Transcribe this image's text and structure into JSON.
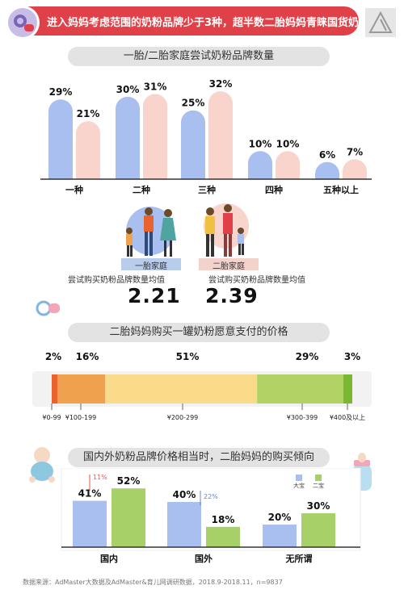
{
  "header": {
    "title": "进入妈妈考虑范围的奶粉品牌少于3种，超半数二胎妈妈青睐国货奶粉",
    "colors": {
      "bar": "#e04047",
      "icon": "#c8bde6"
    }
  },
  "chart_data": [
    {
      "type": "bar",
      "title": "一胎/二胎家庭尝试奶粉品牌数量",
      "categories": [
        "一种",
        "二种",
        "三种",
        "四种",
        "五种以上"
      ],
      "series": [
        {
          "name": "一胎家庭",
          "values": [
            29,
            30,
            25,
            10,
            6
          ],
          "labels": [
            "29%",
            "30%",
            "25%",
            "10%",
            "6%"
          ],
          "color": "#a9bff0"
        },
        {
          "name": "二胎家庭",
          "values": [
            21,
            31,
            32,
            10,
            7
          ],
          "labels": [
            "21%",
            "31%",
            "32%",
            "10%",
            "7%"
          ],
          "color": "#f8d4cc"
        }
      ],
      "ylim": [
        0,
        35
      ]
    },
    {
      "type": "bar",
      "title": "二胎妈妈购买一罐奶粉愿意支付的价格",
      "stacked": true,
      "categories": [
        "¥0-99",
        "¥100-199",
        "¥200-299",
        "¥300-399",
        "¥400及以上"
      ],
      "values": [
        2,
        16,
        51,
        29,
        3
      ],
      "labels": [
        "2%",
        "16%",
        "51%",
        "29%",
        "3%"
      ],
      "colors": [
        "#e8632e",
        "#f0a14d",
        "#fadb8a",
        "#b2d263",
        "#79b830"
      ]
    },
    {
      "type": "bar",
      "title": "国内外奶粉品牌价格相当时，二胎妈妈的购买倾向",
      "categories": [
        "国内",
        "国外",
        "无所谓"
      ],
      "series": [
        {
          "name": "大宝",
          "values": [
            41,
            40,
            20
          ],
          "labels": [
            "41%",
            "40%",
            "20%"
          ],
          "color": "#a9bff0"
        },
        {
          "name": "二宝",
          "values": [
            52,
            18,
            30
          ],
          "labels": [
            "52%",
            "18%",
            "30%"
          ],
          "color": "#a8d068"
        }
      ],
      "annotations": [
        {
          "category": "国内",
          "text": "11%",
          "direction": "up",
          "color": "#e05a4a"
        },
        {
          "category": "国外",
          "text": "22%",
          "direction": "down",
          "color": "#6a86c8"
        }
      ],
      "ylim": [
        0,
        60
      ]
    }
  ],
  "families": {
    "first": {
      "label": "一胎家庭",
      "caption": "尝试购买奶粉品牌数量均值",
      "value": "2.21"
    },
    "second": {
      "label": "二胎家庭",
      "caption": "尝试购买奶粉品牌数量均值",
      "value": "2.39"
    }
  },
  "source": "数据来源：AdMaster大数据及AdMaster&育儿网调研数据，2018.9-2018.11，n=9837"
}
